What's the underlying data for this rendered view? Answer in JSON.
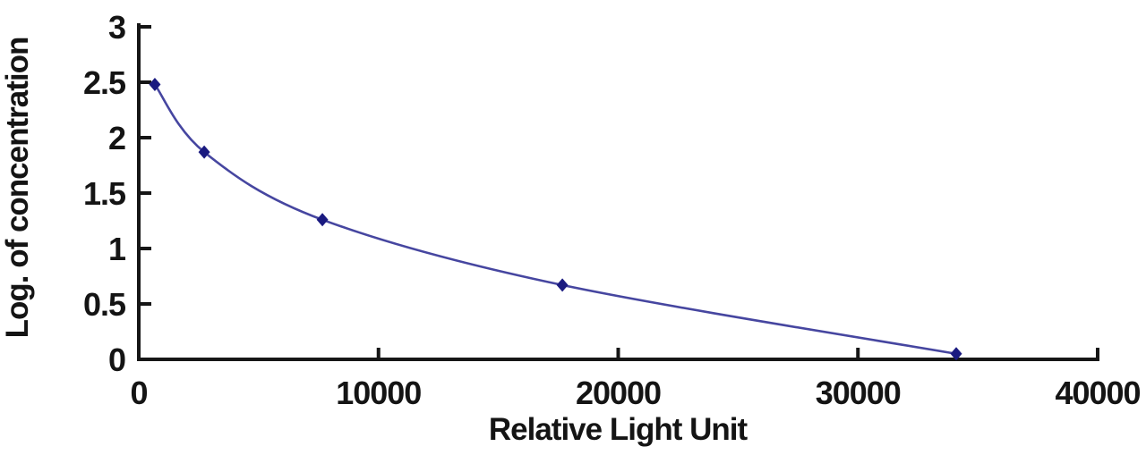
{
  "chart_data": {
    "type": "line",
    "title": "",
    "xlabel": "Relative Light Unit",
    "ylabel": "Log. of concentration",
    "x": [
      670,
      2730,
      7660,
      17670,
      34100
    ],
    "y": [
      2.48,
      1.87,
      1.26,
      0.67,
      0.05
    ],
    "xlim": [
      0,
      40000
    ],
    "ylim": [
      0,
      3
    ],
    "x_ticks": [
      0,
      10000,
      20000,
      30000,
      40000
    ],
    "y_ticks": [
      0,
      0.5,
      1,
      1.5,
      2,
      2.5,
      3
    ],
    "grid": false,
    "legend": "none",
    "smooth": true,
    "marker": "diamond",
    "colors": {
      "line": "#4646a0",
      "marker": "#1a1a80",
      "axis": "#161616",
      "text": "#141414",
      "background": "#ffffff"
    }
  }
}
